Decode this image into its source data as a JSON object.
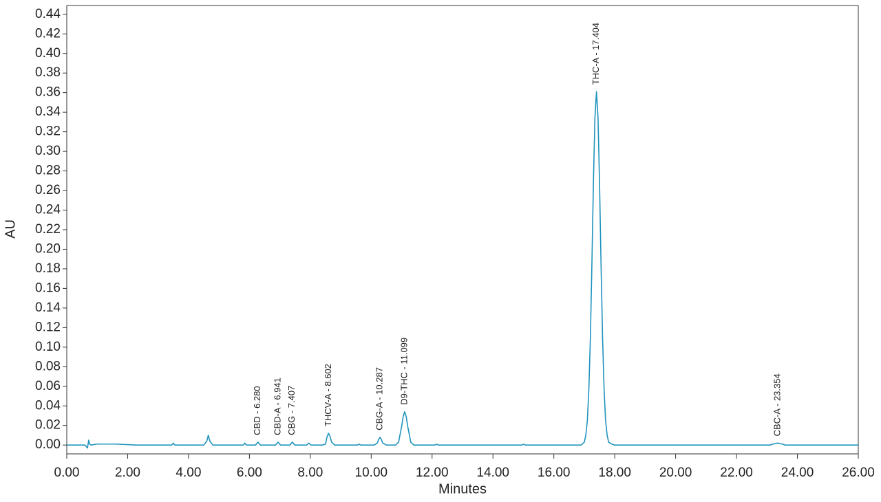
{
  "chart_data": {
    "type": "line",
    "x_label": "Minutes",
    "y_label": "AU",
    "xlim": [
      0,
      26
    ],
    "ylim": [
      -0.009,
      0.449
    ],
    "xticks": [
      {
        "value": 0,
        "label": "0.00"
      },
      {
        "value": 2,
        "label": "2.00"
      },
      {
        "value": 4,
        "label": "4.00"
      },
      {
        "value": 6,
        "label": "6.00"
      },
      {
        "value": 8,
        "label": "8.00"
      },
      {
        "value": 10,
        "label": "10.00"
      },
      {
        "value": 12,
        "label": "12.00"
      },
      {
        "value": 14,
        "label": "14.00"
      },
      {
        "value": 16,
        "label": "16.00"
      },
      {
        "value": 18,
        "label": "18.00"
      },
      {
        "value": 20,
        "label": "20.00"
      },
      {
        "value": 22,
        "label": "22.00"
      },
      {
        "value": 24,
        "label": "24.00"
      },
      {
        "value": 26,
        "label": "26.00"
      }
    ],
    "yticks": [
      {
        "value": 0,
        "label": "0.00"
      },
      {
        "value": 0.02,
        "label": "0.02"
      },
      {
        "value": 0.04,
        "label": "0.04"
      },
      {
        "value": 0.06,
        "label": "0.06"
      },
      {
        "value": 0.08,
        "label": "0.08"
      },
      {
        "value": 0.1,
        "label": "0.10"
      },
      {
        "value": 0.12,
        "label": "0.12"
      },
      {
        "value": 0.14,
        "label": "0.14"
      },
      {
        "value": 0.16,
        "label": "0.16"
      },
      {
        "value": 0.18,
        "label": "0.18"
      },
      {
        "value": 0.2,
        "label": "0.20"
      },
      {
        "value": 0.22,
        "label": "0.22"
      },
      {
        "value": 0.24,
        "label": "0.24"
      },
      {
        "value": 0.26,
        "label": "0.26"
      },
      {
        "value": 0.28,
        "label": "0.28"
      },
      {
        "value": 0.3,
        "label": "0.30"
      },
      {
        "value": 0.32,
        "label": "0.32"
      },
      {
        "value": 0.34,
        "label": "0.34"
      },
      {
        "value": 0.36,
        "label": "0.36"
      },
      {
        "value": 0.38,
        "label": "0.38"
      },
      {
        "value": 0.4,
        "label": "0.40"
      },
      {
        "value": 0.42,
        "label": "0.42"
      },
      {
        "value": 0.44,
        "label": "0.44"
      }
    ],
    "series": [
      {
        "color": "#1f93bd",
        "x": [
          0,
          0.6,
          0.68,
          0.72,
          0.75,
          0.8,
          1.0,
          1.6,
          2.3,
          3.45,
          3.5,
          3.55,
          4.5,
          4.6,
          4.65,
          4.7,
          4.8,
          5.8,
          5.85,
          5.9,
          6.2,
          6.28,
          6.36,
          6.86,
          6.94,
          7.02,
          7.33,
          7.41,
          7.49,
          7.88,
          7.95,
          8.02,
          8.4,
          8.5,
          8.55,
          8.6,
          8.65,
          8.7,
          8.8,
          9.55,
          9.6,
          9.65,
          10.1,
          10.2,
          10.25,
          10.29,
          10.33,
          10.38,
          10.5,
          10.8,
          10.9,
          11.0,
          11.05,
          11.1,
          11.15,
          11.2,
          11.3,
          11.4,
          12.1,
          12.15,
          12.2,
          14.95,
          15.0,
          15.05,
          16.9,
          17.0,
          17.05,
          17.1,
          17.15,
          17.2,
          17.25,
          17.3,
          17.35,
          17.4,
          17.45,
          17.5,
          17.55,
          17.6,
          17.65,
          17.7,
          17.75,
          17.8,
          17.9,
          18.0,
          23.1,
          23.2,
          23.35,
          23.5,
          23.6,
          26
        ],
        "values": [
          0,
          0,
          -0.003,
          0.005,
          0.001,
          0,
          0.001,
          0.001,
          0,
          0,
          0.002,
          0,
          0,
          0.004,
          0.01,
          0.004,
          0,
          0,
          0.002,
          0,
          0,
          0.003,
          0,
          0,
          0.003,
          0,
          0,
          0.003,
          0,
          0,
          0.002,
          0,
          0,
          0.001,
          0.0085,
          0.012,
          0.0085,
          0.003,
          0,
          0,
          0.001,
          0,
          0,
          0.002,
          0.006,
          0.008,
          0.006,
          0.002,
          0,
          0,
          0.003,
          0.019,
          0.029,
          0.034,
          0.029,
          0.019,
          0.003,
          0,
          0,
          0.001,
          0,
          0,
          0.001,
          0,
          0,
          0.003,
          0.01,
          0.025,
          0.057,
          0.11,
          0.185,
          0.269,
          0.335,
          0.361,
          0.335,
          0.269,
          0.185,
          0.11,
          0.057,
          0.025,
          0.01,
          0.003,
          0.001,
          0,
          0,
          0.001,
          0.002,
          0.001,
          0,
          0
        ]
      }
    ],
    "annotations": [
      {
        "label": "CBD - 6.280",
        "x": 6.28,
        "y": 0.003
      },
      {
        "label": "CBD-A - 6.941",
        "x": 6.941,
        "y": 0.003
      },
      {
        "label": "CBG - 7.407",
        "x": 7.407,
        "y": 0.003
      },
      {
        "label": "THCV-A - 8.602",
        "x": 8.602,
        "y": 0.012
      },
      {
        "label": "CBG-A - 10.287",
        "x": 10.287,
        "y": 0.008
      },
      {
        "label": "D9-THC - 11.099",
        "x": 11.099,
        "y": 0.034
      },
      {
        "label": "THC-A - 17.404",
        "x": 17.404,
        "y": 0.361
      },
      {
        "label": "CBC-A - 23.354",
        "x": 23.354,
        "y": 0.002
      }
    ]
  }
}
